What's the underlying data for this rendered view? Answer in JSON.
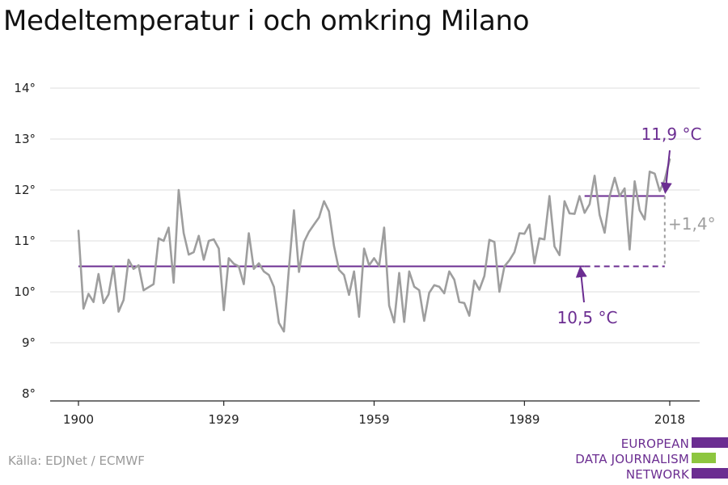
{
  "title": "Medeltemperatur i och omkring Milano",
  "source": "Källa: EDJNet / ECMWF",
  "logo": {
    "lines": [
      "EUROPEAN",
      "DATA JOURNALISM",
      "NETWORK"
    ],
    "colors": {
      "purple": "#6b2d91",
      "green": "#8dc63f"
    }
  },
  "colors": {
    "series": "#9e9e9e",
    "accent": "#6b2d91",
    "grid": "#dddddd",
    "axis": "#222222",
    "delta": "#9e9e9e"
  },
  "chart_data": {
    "type": "line",
    "title": "Medeltemperatur i och omkring Milano",
    "xlabel": "",
    "ylabel": "",
    "xlim": [
      1900,
      2018
    ],
    "ylim": [
      8,
      14
    ],
    "x_ticks": [
      1900,
      1929,
      1959,
      1989,
      2018
    ],
    "y_ticks": [
      8,
      9,
      10,
      11,
      12,
      13,
      14
    ],
    "y_tick_suffix": "°",
    "grid": true,
    "x_start": 1900,
    "series": [
      {
        "values": [
          11.2,
          9.67,
          9.96,
          9.8,
          10.35,
          9.78,
          9.95,
          10.5,
          9.61,
          9.84,
          10.63,
          10.45,
          10.52,
          10.03,
          10.09,
          10.15,
          11.05,
          11.0,
          11.26,
          10.18,
          12.0,
          11.15,
          10.73,
          10.78,
          11.1,
          10.63,
          11.0,
          11.03,
          10.85,
          9.64,
          10.66,
          10.55,
          10.5,
          10.15,
          11.15,
          10.45,
          10.56,
          10.4,
          10.33,
          10.1,
          9.39,
          9.22,
          10.46,
          11.6,
          10.39,
          10.98,
          11.18,
          11.32,
          11.46,
          11.78,
          11.58,
          10.9,
          10.43,
          10.33,
          9.94,
          10.4,
          9.51,
          10.85,
          10.52,
          10.66,
          10.51,
          11.26,
          9.73,
          9.4,
          10.37,
          9.41,
          10.4,
          10.1,
          10.03,
          9.43,
          9.98,
          10.13,
          10.1,
          9.97,
          10.4,
          10.24,
          9.8,
          9.78,
          9.53,
          10.22,
          10.04,
          10.31,
          11.02,
          10.98,
          10.0,
          10.5,
          10.62,
          10.78,
          11.15,
          11.14,
          11.32,
          10.56,
          11.05,
          11.03,
          11.88,
          10.89,
          10.72,
          11.78,
          11.54,
          11.53,
          11.88,
          11.55,
          11.72,
          12.28,
          11.51,
          11.16,
          11.88,
          12.24,
          11.88,
          12.03,
          10.83,
          12.17,
          11.6,
          11.42,
          12.36,
          12.32,
          11.98,
          12.2,
          12.6
        ]
      }
    ],
    "reference_lines": [
      {
        "value": 10.5,
        "from": 1900,
        "to": 2001,
        "style": "solid"
      },
      {
        "value": 10.5,
        "from": 2001,
        "to": 2017,
        "style": "dashed"
      },
      {
        "value": 11.88,
        "from": 2001,
        "to": 2017,
        "style": "solid"
      }
    ],
    "annotations": [
      {
        "text": "11,9 °C",
        "x": 2018,
        "y": 12.0
      },
      {
        "text": "10,5 °C",
        "x": 2003,
        "y": 10.5
      },
      {
        "text": "+1,4°",
        "x": 2017,
        "y": 11.2
      }
    ]
  }
}
